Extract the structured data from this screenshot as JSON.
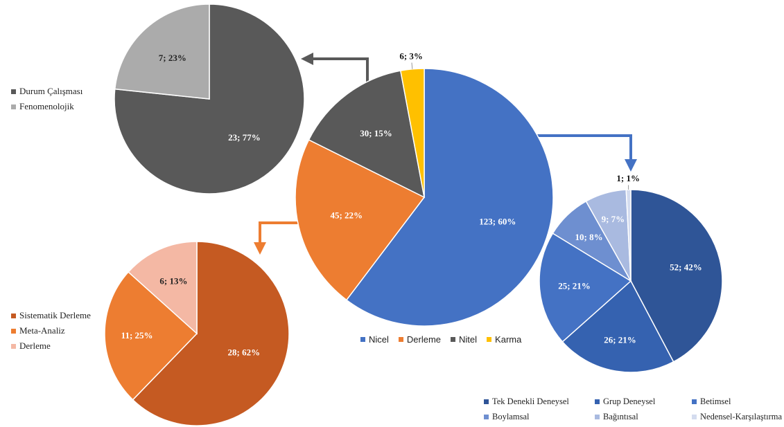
{
  "chart_data": [
    {
      "type": "pie",
      "id": "main",
      "categories": [
        "Nicel",
        "Derleme",
        "Nitel",
        "Karma"
      ],
      "values": [
        123,
        45,
        30,
        6
      ],
      "labels": [
        "123; 60%",
        "45; 22%",
        "30; 15%",
        "6; 3%"
      ],
      "colors": [
        "#4472C4",
        "#ED7D31",
        "#595959",
        "#FFC000"
      ],
      "legend_position": "bottom"
    },
    {
      "type": "pie",
      "id": "nitel",
      "categories": [
        "Durum Çalışması",
        "Fenomenolojik"
      ],
      "values": [
        23,
        7
      ],
      "labels": [
        "23; 77%",
        "7; 23%"
      ],
      "colors": [
        "#595959",
        "#ABABAB"
      ],
      "legend_position": "left"
    },
    {
      "type": "pie",
      "id": "derleme",
      "categories": [
        "Sistematik Derleme",
        "Meta-Analiz",
        "Derleme"
      ],
      "values": [
        28,
        11,
        6
      ],
      "labels": [
        "28; 62%",
        "11; 25%",
        "6; 13%"
      ],
      "colors": [
        "#C55A22",
        "#ED7D31",
        "#F4B8A4"
      ],
      "legend_position": "left"
    },
    {
      "type": "pie",
      "id": "nicel",
      "categories": [
        "Tek Denekli Deneysel",
        "Grup Deneysel",
        "Betimsel",
        "Boylamsal",
        "Bağıntısal",
        "Nedensel-Karşılaştırma"
      ],
      "values": [
        52,
        26,
        25,
        10,
        9,
        1
      ],
      "labels": [
        "52; 42%",
        "26; 21%",
        "25; 21%",
        "10; 8%",
        "9; 7%",
        "1; 1%"
      ],
      "colors": [
        "#2F5597",
        "#3562B0",
        "#4472C4",
        "#6E8FD0",
        "#A9BAE0",
        "#D4DCEF"
      ],
      "legend_position": "bottom"
    }
  ]
}
